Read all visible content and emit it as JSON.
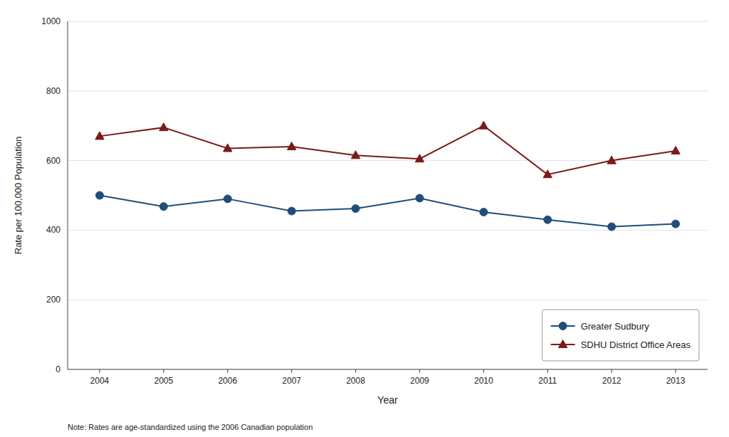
{
  "chart_data": {
    "type": "line",
    "x": [
      2004,
      2005,
      2006,
      2007,
      2008,
      2009,
      2010,
      2011,
      2012,
      2013
    ],
    "series": [
      {
        "name": "Greater Sudbury",
        "color": "#1f4e79",
        "marker": "circle",
        "values": [
          500,
          468,
          490,
          455,
          462,
          492,
          452,
          430,
          410,
          418
        ]
      },
      {
        "name": "SDHU District Office Areas",
        "color": "#7a1a1a",
        "marker": "triangle",
        "values": [
          670,
          695,
          635,
          640,
          615,
          605,
          700,
          560,
          600,
          628
        ]
      }
    ],
    "xlabel": "Year",
    "ylabel": "Rate per 100,000 Population",
    "xlim": [
      2003.5,
      2013.5
    ],
    "xticks": [
      2004,
      2005,
      2006,
      2007,
      2008,
      2009,
      2010,
      2011,
      2012,
      2013
    ],
    "ylim": [
      0,
      1000
    ],
    "yticks": [
      0,
      200,
      400,
      600,
      800,
      1000
    ],
    "grid": true,
    "legend": "lower right",
    "annotations": [
      "Note: Rates are age-standardized using the 2006 Canadian population"
    ]
  }
}
